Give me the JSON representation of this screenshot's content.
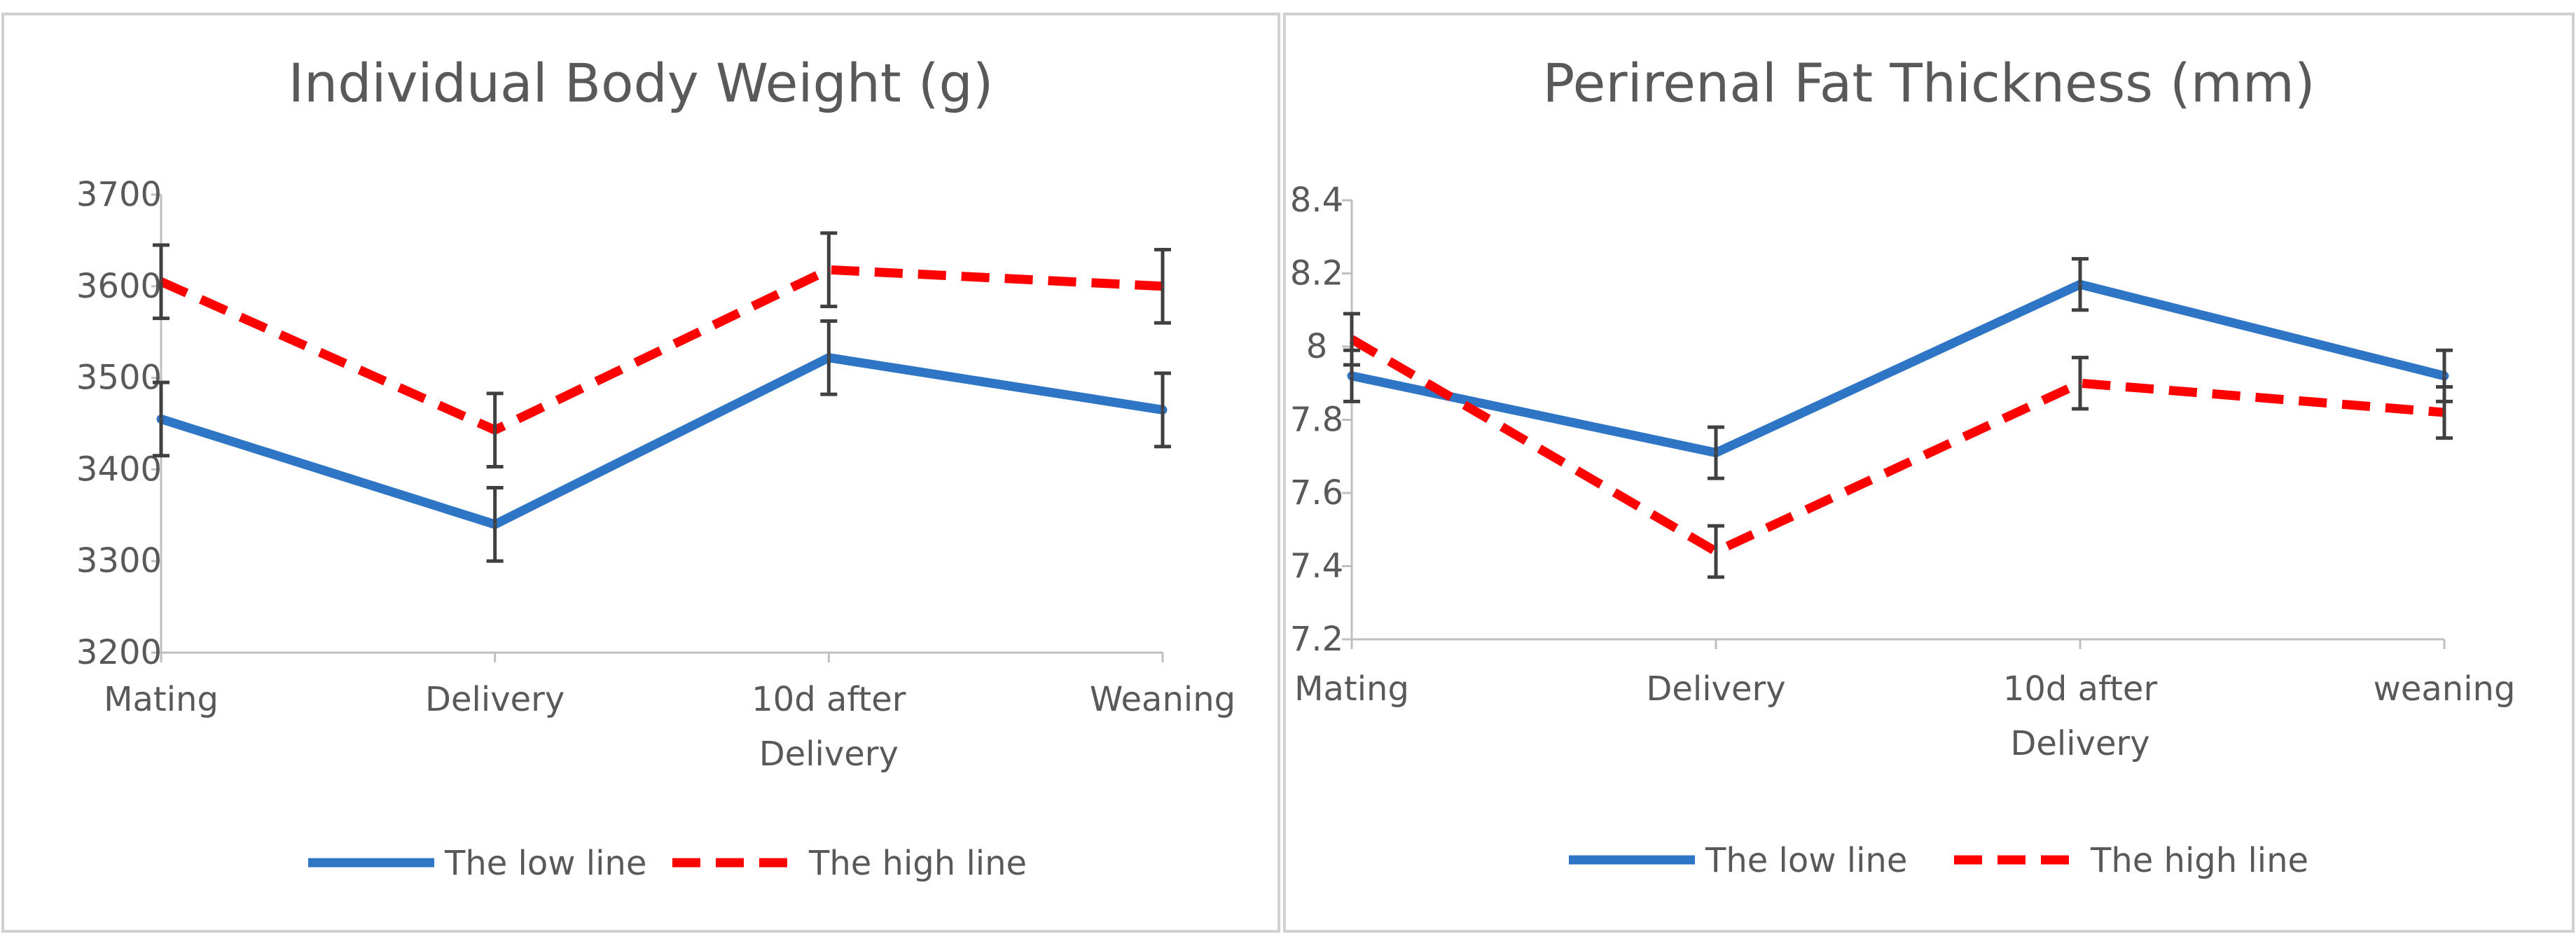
{
  "chart_data": [
    {
      "type": "line",
      "title": "Individual Body Weight (g)",
      "categories": [
        "Mating",
        "Delivery",
        "10d after|Delivery",
        "Weaning"
      ],
      "ylim": [
        3200,
        3700
      ],
      "yticks": [
        3200,
        3300,
        3400,
        3500,
        3600,
        3700
      ],
      "series": [
        {
          "name": "The low line",
          "color": "#2E75C6",
          "dash": false,
          "values": [
            3455,
            3340,
            3522,
            3465
          ],
          "errors": [
            40,
            40,
            40,
            40
          ]
        },
        {
          "name": "The high line",
          "color": "#FF0000",
          "dash": true,
          "values": [
            3605,
            3443,
            3618,
            3600
          ],
          "errors": [
            40,
            40,
            40,
            40
          ]
        }
      ],
      "legend": "bottom"
    },
    {
      "type": "line",
      "title": "Perirenal Fat Thickness (mm)",
      "categories": [
        "Mating",
        "Delivery",
        "10d after|Delivery",
        "weaning"
      ],
      "ylim": [
        7.2,
        8.4
      ],
      "yticks": [
        7.2,
        7.4,
        7.6,
        7.8,
        8,
        8.2,
        8.4
      ],
      "series": [
        {
          "name": "The low line",
          "color": "#2E75C6",
          "dash": false,
          "values": [
            7.92,
            7.71,
            8.17,
            7.92
          ],
          "errors": [
            0.07,
            0.07,
            0.07,
            0.07
          ]
        },
        {
          "name": "The high line",
          "color": "#FF0000",
          "dash": true,
          "values": [
            8.02,
            7.44,
            7.9,
            7.82
          ],
          "errors": [
            0.07,
            0.07,
            0.07,
            0.07
          ]
        }
      ],
      "legend": "bottom"
    }
  ]
}
